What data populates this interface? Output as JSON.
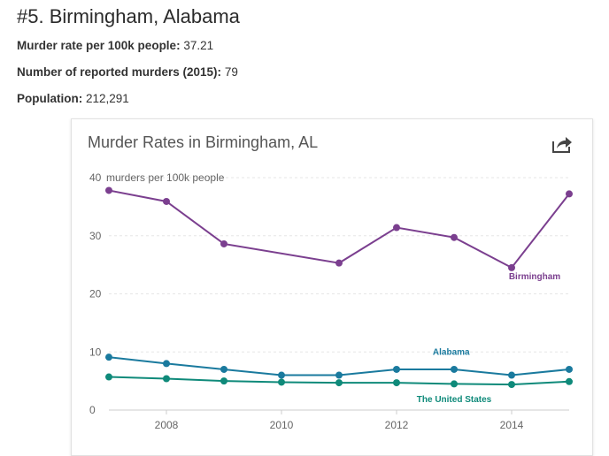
{
  "header": {
    "title": "#5. Birmingham, Alabama"
  },
  "stats": {
    "rate_label": "Murder rate per 100k people:",
    "rate_value": "37.21",
    "murders_label": "Number of reported murders (2015):",
    "murders_value": "79",
    "population_label": "Population:",
    "population_value": "212,291"
  },
  "chart": {
    "title": "Murder Rates in Birmingham, AL",
    "share_icon": "share-icon"
  },
  "chart_data": {
    "type": "line",
    "title": "Murder Rates in Birmingham, AL",
    "ylabel": "murders per 100k people",
    "xlabel": "",
    "xlim": [
      2007,
      2015
    ],
    "ylim": [
      0,
      40
    ],
    "x_ticks": [
      2008,
      2010,
      2012,
      2014
    ],
    "y_ticks": [
      0,
      10,
      20,
      30,
      40
    ],
    "y_ticks_labels": [
      "0",
      "10",
      "20",
      "30",
      "40"
    ],
    "grid": true,
    "x": [
      2007,
      2008,
      2009,
      2010,
      2011,
      2012,
      2013,
      2014,
      2015
    ],
    "series": [
      {
        "name": "Birmingham",
        "color": "#7b3f8f",
        "values": [
          37.8,
          35.9,
          28.6,
          null,
          25.3,
          31.4,
          29.7,
          24.5,
          37.2
        ]
      },
      {
        "name": "Alabama",
        "color": "#1a7a9e",
        "values": [
          9.1,
          8.0,
          7.0,
          6.0,
          6.0,
          7.0,
          7.0,
          6.0,
          7.0
        ]
      },
      {
        "name": "The United States",
        "color": "#0f8a7a",
        "values": [
          5.7,
          5.4,
          5.0,
          4.8,
          4.7,
          4.7,
          4.5,
          4.4,
          4.9
        ]
      }
    ]
  }
}
